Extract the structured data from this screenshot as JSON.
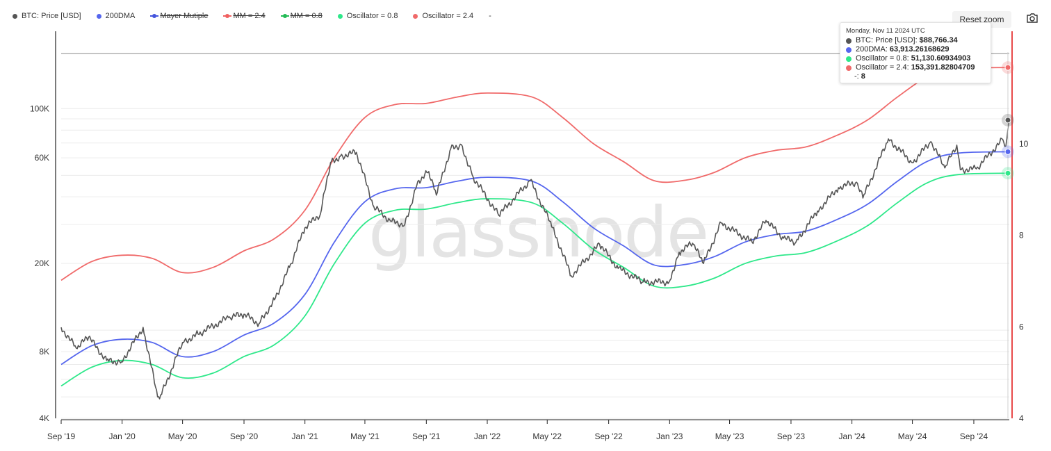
{
  "legend": [
    {
      "label": "BTC: Price [USD]",
      "color": "#555555",
      "hidden": false
    },
    {
      "label": "200DMA",
      "color": "#5566ee",
      "hidden": false
    },
    {
      "label": "Mayer Mutiple",
      "color": "#4455dd",
      "hidden": true
    },
    {
      "label": "MM = 2.4",
      "color": "#f06060",
      "hidden": true
    },
    {
      "label": "MM = 0.8",
      "color": "#22bb55",
      "hidden": true
    },
    {
      "label": "Oscillator = 0.8",
      "color": "#2ee88a",
      "hidden": false
    },
    {
      "label": "Oscillator = 2.4",
      "color": "#f06a6a",
      "hidden": false
    },
    {
      "label": "-",
      "color": "#999999",
      "hidden": false
    }
  ],
  "controls": {
    "reset_zoom": "Reset zoom",
    "camera_icon": "camera-icon"
  },
  "watermark": "glassnode",
  "tooltip": {
    "date": "Monday, Nov 11 2024 UTC",
    "rows": [
      {
        "label": "BTC: Price [USD]:",
        "value": "$88,766.34",
        "color": "#555555"
      },
      {
        "label": "200DMA:",
        "value": "63,913.26168629",
        "color": "#5566ee"
      },
      {
        "label": "Oscillator = 0.8:",
        "value": "51,130.60934903",
        "color": "#2ee88a"
      },
      {
        "label": "Oscillator = 2.4:",
        "value": "153,391.82804709",
        "color": "#f06a6a"
      },
      {
        "label": "-:",
        "value": "8",
        "color": ""
      }
    ]
  },
  "colors": {
    "price": "#555555",
    "dma": "#5566ee",
    "osc08": "#2ee88a",
    "osc24": "#f06a6a",
    "right_axis": "#e84a4a"
  },
  "chart_data": {
    "type": "line",
    "x_axis": {
      "ticks": [
        "Sep '19",
        "Jan '20",
        "May '20",
        "Sep '20",
        "Jan '21",
        "May '21",
        "Sep '21",
        "Jan '22",
        "May '22",
        "Sep '22",
        "Jan '23",
        "May '23",
        "Sep '23",
        "Jan '24",
        "May '24",
        "Sep '24"
      ],
      "range": [
        "2019-09-01",
        "2024-11-11"
      ]
    },
    "y_axis_left": {
      "scale": "log",
      "ticks": [
        "4K",
        "8K",
        "20K",
        "60K",
        "100K"
      ]
    },
    "y_axis_right": {
      "ticks": [
        "4",
        "6",
        "8",
        "10"
      ],
      "range": [
        4,
        12
      ]
    },
    "series": [
      {
        "name": "BTC: Price [USD]",
        "points": [
          [
            "2019-09-01",
            10300
          ],
          [
            "2019-10-01",
            8300
          ],
          [
            "2019-10-26",
            9300
          ],
          [
            "2019-12-01",
            7300
          ],
          [
            "2019-12-31",
            7200
          ],
          [
            "2020-02-12",
            10300
          ],
          [
            "2020-03-12",
            5000
          ],
          [
            "2020-03-16",
            4900
          ],
          [
            "2020-05-01",
            8800
          ],
          [
            "2020-06-01",
            9600
          ],
          [
            "2020-08-01",
            11400
          ],
          [
            "2020-09-01",
            11800
          ],
          [
            "2020-10-01",
            10700
          ],
          [
            "2020-11-01",
            13700
          ],
          [
            "2020-12-01",
            19200
          ],
          [
            "2021-01-01",
            29000
          ],
          [
            "2021-02-01",
            33500
          ],
          [
            "2021-02-21",
            57000
          ],
          [
            "2021-03-13",
            61000
          ],
          [
            "2021-04-14",
            63500
          ],
          [
            "2021-05-19",
            36000
          ],
          [
            "2021-06-22",
            31000
          ],
          [
            "2021-07-20",
            30000
          ],
          [
            "2021-08-15",
            47000
          ],
          [
            "2021-09-06",
            52000
          ],
          [
            "2021-09-21",
            40700
          ],
          [
            "2021-10-20",
            66000
          ],
          [
            "2021-11-10",
            68800
          ],
          [
            "2021-12-04",
            49000
          ],
          [
            "2022-01-24",
            33000
          ],
          [
            "2022-03-28",
            47500
          ],
          [
            "2022-05-12",
            29000
          ],
          [
            "2022-06-18",
            17600
          ],
          [
            "2022-08-14",
            24400
          ],
          [
            "2022-09-20",
            19000
          ],
          [
            "2022-11-09",
            16500
          ],
          [
            "2022-12-31",
            16500
          ],
          [
            "2023-01-20",
            22500
          ],
          [
            "2023-02-16",
            24700
          ],
          [
            "2023-03-10",
            20000
          ],
          [
            "2023-04-14",
            30500
          ],
          [
            "2023-06-15",
            25000
          ],
          [
            "2023-07-13",
            31300
          ],
          [
            "2023-08-17",
            26000
          ],
          [
            "2023-09-11",
            25000
          ],
          [
            "2023-10-24",
            34500
          ],
          [
            "2023-12-05",
            44000
          ],
          [
            "2024-01-10",
            46600
          ],
          [
            "2024-01-23",
            39500
          ],
          [
            "2024-03-14",
            73000
          ],
          [
            "2024-05-01",
            57000
          ],
          [
            "2024-06-07",
            71000
          ],
          [
            "2024-07-05",
            54000
          ],
          [
            "2024-07-29",
            68500
          ],
          [
            "2024-08-05",
            53000
          ],
          [
            "2024-09-06",
            53500
          ],
          [
            "2024-10-29",
            72500
          ],
          [
            "2024-11-04",
            67800
          ],
          [
            "2024-11-11",
            88766.34
          ]
        ]
      },
      {
        "name": "200DMA",
        "points": [
          [
            "2019-09-01",
            7000
          ],
          [
            "2019-11-01",
            8500
          ],
          [
            "2020-01-01",
            9100
          ],
          [
            "2020-03-01",
            8800
          ],
          [
            "2020-05-01",
            7600
          ],
          [
            "2020-07-01",
            8000
          ],
          [
            "2020-09-01",
            9500
          ],
          [
            "2020-11-01",
            10800
          ],
          [
            "2021-01-01",
            14500
          ],
          [
            "2021-03-01",
            25000
          ],
          [
            "2021-05-01",
            38000
          ],
          [
            "2021-07-01",
            43500
          ],
          [
            "2021-09-01",
            44000
          ],
          [
            "2021-11-01",
            47000
          ],
          [
            "2022-01-01",
            49000
          ],
          [
            "2022-04-01",
            47000
          ],
          [
            "2022-06-01",
            38000
          ],
          [
            "2022-08-01",
            29000
          ],
          [
            "2022-10-01",
            24000
          ],
          [
            "2022-12-01",
            19700
          ],
          [
            "2023-02-01",
            19800
          ],
          [
            "2023-04-01",
            21500
          ],
          [
            "2023-06-01",
            25000
          ],
          [
            "2023-08-01",
            27000
          ],
          [
            "2023-10-01",
            28000
          ],
          [
            "2023-12-01",
            31500
          ],
          [
            "2024-02-01",
            37000
          ],
          [
            "2024-04-01",
            47000
          ],
          [
            "2024-06-01",
            58000
          ],
          [
            "2024-08-01",
            63000
          ],
          [
            "2024-11-11",
            63913.26
          ]
        ]
      },
      {
        "name": "Oscillator = 0.8",
        "points": [
          [
            "2019-09-01",
            5600
          ],
          [
            "2019-11-01",
            6800
          ],
          [
            "2020-01-01",
            7300
          ],
          [
            "2020-03-01",
            7000
          ],
          [
            "2020-05-01",
            6100
          ],
          [
            "2020-07-01",
            6400
          ],
          [
            "2020-09-01",
            7600
          ],
          [
            "2020-11-01",
            8600
          ],
          [
            "2021-01-01",
            11600
          ],
          [
            "2021-03-01",
            20000
          ],
          [
            "2021-05-01",
            30400
          ],
          [
            "2021-07-01",
            34800
          ],
          [
            "2021-09-01",
            35200
          ],
          [
            "2021-11-01",
            37600
          ],
          [
            "2022-01-01",
            39200
          ],
          [
            "2022-04-01",
            37600
          ],
          [
            "2022-06-01",
            30400
          ],
          [
            "2022-08-01",
            23200
          ],
          [
            "2022-10-01",
            19200
          ],
          [
            "2022-12-01",
            15800
          ],
          [
            "2023-02-01",
            15800
          ],
          [
            "2023-04-01",
            17200
          ],
          [
            "2023-06-01",
            20000
          ],
          [
            "2023-08-01",
            21600
          ],
          [
            "2023-10-01",
            22400
          ],
          [
            "2023-12-01",
            25200
          ],
          [
            "2024-02-01",
            29600
          ],
          [
            "2024-04-01",
            37600
          ],
          [
            "2024-06-01",
            46400
          ],
          [
            "2024-08-01",
            50400
          ],
          [
            "2024-11-11",
            51130.61
          ]
        ]
      },
      {
        "name": "Oscillator = 2.4",
        "points": [
          [
            "2019-09-01",
            16800
          ],
          [
            "2019-11-01",
            20400
          ],
          [
            "2020-01-01",
            21800
          ],
          [
            "2020-03-01",
            21100
          ],
          [
            "2020-05-01",
            18200
          ],
          [
            "2020-07-01",
            19200
          ],
          [
            "2020-09-01",
            22800
          ],
          [
            "2020-11-01",
            25900
          ],
          [
            "2021-01-01",
            34800
          ],
          [
            "2021-03-01",
            60000
          ],
          [
            "2021-05-01",
            91200
          ],
          [
            "2021-07-01",
            104400
          ],
          [
            "2021-09-01",
            105600
          ],
          [
            "2021-11-01",
            112800
          ],
          [
            "2022-01-01",
            117600
          ],
          [
            "2022-04-01",
            112800
          ],
          [
            "2022-06-01",
            91200
          ],
          [
            "2022-08-01",
            69600
          ],
          [
            "2022-10-01",
            57600
          ],
          [
            "2022-12-01",
            47300
          ],
          [
            "2023-02-01",
            47500
          ],
          [
            "2023-04-01",
            51600
          ],
          [
            "2023-06-01",
            60000
          ],
          [
            "2023-08-01",
            64800
          ],
          [
            "2023-10-01",
            67200
          ],
          [
            "2023-12-01",
            75600
          ],
          [
            "2024-02-01",
            88800
          ],
          [
            "2024-04-01",
            112800
          ],
          [
            "2024-06-01",
            139200
          ],
          [
            "2024-08-01",
            151200
          ],
          [
            "2024-11-11",
            153391.83
          ]
        ]
      }
    ]
  }
}
